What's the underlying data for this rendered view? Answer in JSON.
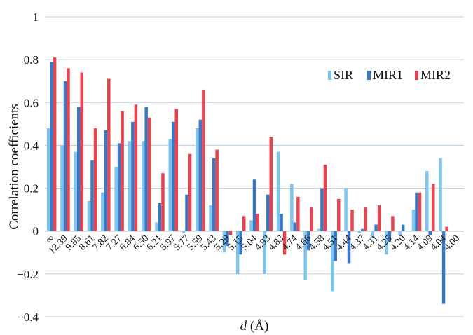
{
  "chart_data": {
    "type": "bar",
    "title": "",
    "xlabel": {
      "var": "d",
      "unit": " (Å)"
    },
    "ylabel": "Correlation coefficients",
    "ylim": [
      -0.4,
      1
    ],
    "yticks": [
      "−0.4",
      "−0.2",
      "0",
      "0.2",
      "0.4",
      "0.6",
      "0.8",
      "1"
    ],
    "ytick_values": [
      -0.4,
      -0.2,
      0,
      0.2,
      0.4,
      0.6,
      0.8,
      1
    ],
    "grid": true,
    "legend_position": "right",
    "categories": [
      "∞",
      "12.39",
      "9.85",
      "8.61",
      "7.82",
      "7.27",
      "6.84",
      "6.50",
      "6.21",
      "5.97",
      "5.77",
      "5.59",
      "5.43",
      "5.29",
      "5.15",
      "5.04",
      "4.93",
      "4.83",
      "4.74",
      "4.66",
      "4.58",
      "4.51",
      "4.44",
      "4.37",
      "4.31",
      "4.25",
      "4.20",
      "4.14",
      "4.09",
      "4.04",
      "4.00"
    ],
    "series": [
      {
        "name": "SIR",
        "color": "#7fc4ec",
        "values": [
          0.48,
          0.4,
          0.37,
          0.14,
          0.18,
          0.3,
          0.42,
          0.42,
          0.04,
          0.43,
          -0.01,
          0.48,
          0.12,
          -0.1,
          -0.2,
          0.05,
          -0.2,
          0.37,
          0.22,
          -0.23,
          0.01,
          -0.28,
          0.2,
          -0.01,
          -0.03,
          -0.11,
          -0.02,
          0.1,
          0.28,
          0.34,
          0.0
        ]
      },
      {
        "name": "MIR1",
        "color": "#3a78c4",
        "values": [
          0.79,
          0.7,
          0.58,
          0.33,
          0.47,
          0.41,
          0.51,
          0.58,
          0.13,
          0.51,
          0.17,
          0.52,
          0.34,
          -0.07,
          -0.11,
          0.24,
          0.17,
          0.08,
          0.04,
          -0.09,
          0.2,
          -0.14,
          -0.15,
          0.01,
          0.03,
          -0.05,
          0.03,
          0.18,
          -0.02,
          -0.34,
          0.0
        ]
      },
      {
        "name": "MIR2",
        "color": "#e84450",
        "values": [
          0.81,
          0.76,
          0.74,
          0.48,
          0.71,
          0.56,
          0.59,
          0.53,
          0.27,
          0.57,
          0.36,
          0.66,
          0.38,
          -0.02,
          0.07,
          0.08,
          0.44,
          -0.11,
          0.16,
          0.11,
          0.31,
          0.15,
          0.1,
          0.11,
          0.12,
          0.07,
          0.0,
          0.18,
          0.22,
          0.02,
          0.0
        ]
      }
    ]
  }
}
